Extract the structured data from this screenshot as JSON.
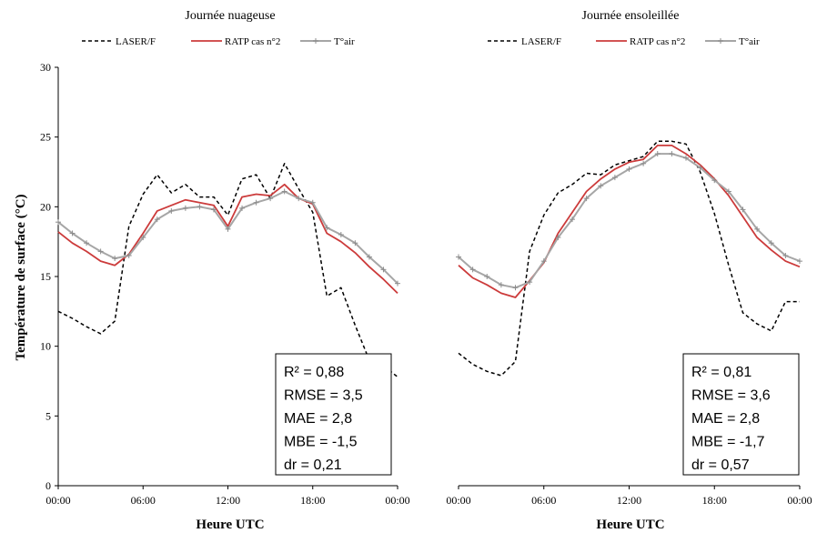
{
  "chart_data": {
    "type": "line",
    "ylabel": "Température de surface (°C)",
    "xlabel": "Heure UTC",
    "ylim": [
      0,
      30
    ],
    "yticks": [
      "0",
      "5",
      "10",
      "15",
      "20",
      "25",
      "30"
    ],
    "xlim_hours": [
      0,
      24
    ],
    "xticks": [
      "00:00",
      "06:00",
      "12:00",
      "18:00",
      "00:00"
    ],
    "grid": false,
    "legend_position": "top",
    "legend": [
      {
        "name": "LASER/F",
        "color": "#000000",
        "style": "dashed"
      },
      {
        "name": "RATP cas n°2",
        "color": "#cc3b3b",
        "style": "solid"
      },
      {
        "name": "T°air",
        "color": "#a6a6a6",
        "style": "solid-plus-markers"
      }
    ],
    "panels": [
      {
        "title": "Journée nuageuse",
        "stats": [
          "R² = 0,88",
          "RMSE = 3,5",
          "MAE =  2,8",
          "MBE = -1,5",
          "dr = 0,21"
        ],
        "series": [
          {
            "name": "LASER/F",
            "x": [
              0,
              1,
              2,
              3,
              4,
              5,
              6,
              7,
              8,
              9,
              10,
              11,
              12,
              13,
              14,
              15,
              16,
              17,
              18,
              19,
              20,
              21,
              22,
              23,
              24
            ],
            "values": [
              12.5,
              12.0,
              11.4,
              10.9,
              11.8,
              18.6,
              20.9,
              22.3,
              21.0,
              21.6,
              20.7,
              20.7,
              19.4,
              22.0,
              22.3,
              20.6,
              23.1,
              21.3,
              19.6,
              13.6,
              14.2,
              11.5,
              9.0,
              8.6,
              7.8
            ]
          },
          {
            "name": "RATP cas n°2",
            "x": [
              0,
              1,
              2,
              3,
              4,
              5,
              6,
              7,
              8,
              9,
              10,
              11,
              12,
              13,
              14,
              15,
              16,
              17,
              18,
              19,
              20,
              21,
              22,
              23,
              24
            ],
            "values": [
              18.2,
              17.4,
              16.8,
              16.1,
              15.8,
              16.6,
              18.1,
              19.7,
              20.1,
              20.5,
              20.3,
              20.1,
              18.6,
              20.7,
              20.9,
              20.8,
              21.6,
              20.6,
              20.2,
              18.1,
              17.5,
              16.7,
              15.7,
              14.8,
              13.8
            ]
          },
          {
            "name": "T°air",
            "x": [
              0,
              1,
              2,
              3,
              4,
              5,
              6,
              7,
              8,
              9,
              10,
              11,
              12,
              13,
              14,
              15,
              16,
              17,
              18,
              19,
              20,
              21,
              22,
              23,
              24
            ],
            "values": [
              18.9,
              18.1,
              17.4,
              16.8,
              16.3,
              16.5,
              17.8,
              19.1,
              19.7,
              19.9,
              20.0,
              19.8,
              18.4,
              19.9,
              20.3,
              20.6,
              21.1,
              20.6,
              20.3,
              18.5,
              18.0,
              17.4,
              16.4,
              15.5,
              14.5
            ]
          }
        ]
      },
      {
        "title": "Journée ensoleillée",
        "stats": [
          "R² = 0,81",
          "RMSE = 3,6",
          "MAE =  2,8",
          "MBE = -1,7",
          "dr = 0,57"
        ],
        "series": [
          {
            "name": "LASER/F",
            "x": [
              0,
              1,
              2,
              3,
              4,
              5,
              6,
              7,
              8,
              9,
              10,
              11,
              12,
              13,
              14,
              15,
              16,
              17,
              18,
              19,
              20,
              21,
              22,
              23,
              24
            ],
            "values": [
              9.5,
              8.7,
              8.2,
              7.9,
              8.9,
              16.8,
              19.4,
              21.0,
              21.6,
              22.4,
              22.3,
              23.0,
              23.3,
              23.6,
              24.7,
              24.7,
              24.5,
              22.5,
              19.5,
              15.8,
              12.4,
              11.6,
              11.1,
              13.2,
              13.2
            ]
          },
          {
            "name": "RATP cas n°2",
            "x": [
              0,
              1,
              2,
              3,
              4,
              5,
              6,
              7,
              8,
              9,
              10,
              11,
              12,
              13,
              14,
              15,
              16,
              17,
              18,
              19,
              20,
              21,
              22,
              23,
              24
            ],
            "values": [
              15.8,
              14.9,
              14.4,
              13.8,
              13.5,
              14.7,
              16.0,
              18.1,
              19.6,
              21.1,
              22.0,
              22.7,
              23.2,
              23.4,
              24.4,
              24.4,
              23.8,
              23.0,
              22.0,
              20.8,
              19.3,
              17.8,
              16.9,
              16.1,
              15.7
            ]
          },
          {
            "name": "T°air",
            "x": [
              0,
              1,
              2,
              3,
              4,
              5,
              6,
              7,
              8,
              9,
              10,
              11,
              12,
              13,
              14,
              15,
              16,
              17,
              18,
              19,
              20,
              21,
              22,
              23,
              24
            ],
            "values": [
              16.4,
              15.5,
              15.0,
              14.4,
              14.2,
              14.6,
              16.1,
              17.8,
              19.1,
              20.6,
              21.5,
              22.1,
              22.7,
              23.1,
              23.8,
              23.8,
              23.5,
              22.8,
              21.9,
              21.1,
              19.8,
              18.4,
              17.4,
              16.5,
              16.1
            ]
          }
        ]
      }
    ]
  }
}
